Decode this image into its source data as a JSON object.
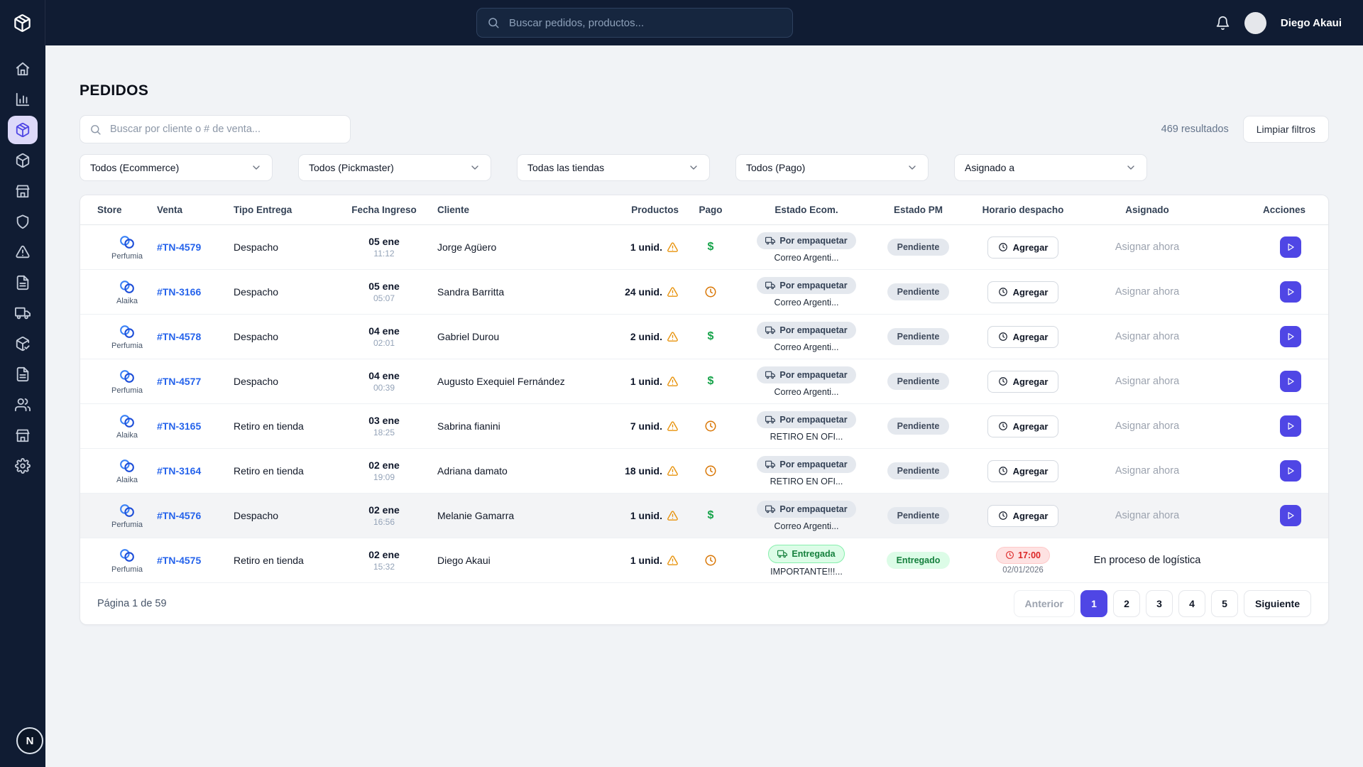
{
  "colors": {
    "navy": "#101c33",
    "accent": "#4f46e5",
    "link": "#2563eb",
    "paid-green": "#16a34a",
    "success-green": "#15803d",
    "warning-orange": "#e8930c",
    "pending-clock-orange": "#d97706",
    "danger-red": "#dc2626"
  },
  "topbar": {
    "logo_icon": "package",
    "search_placeholder": "Buscar pedidos, productos...",
    "bell_icon": "bell",
    "user_name": "Diego Akaui"
  },
  "sidebar": {
    "items": [
      {
        "id": "home",
        "icon": "home",
        "active": false
      },
      {
        "id": "analytics",
        "icon": "chart",
        "active": false
      },
      {
        "id": "orders",
        "icon": "package",
        "active": true
      },
      {
        "id": "products",
        "icon": "cube",
        "active": false
      },
      {
        "id": "store",
        "icon": "store",
        "active": false
      },
      {
        "id": "security",
        "icon": "shield",
        "active": false
      },
      {
        "id": "alerts",
        "icon": "alert-triangle",
        "active": false
      },
      {
        "id": "documents",
        "icon": "file",
        "active": false
      },
      {
        "id": "shipping",
        "icon": "truck",
        "active": false
      },
      {
        "id": "picking",
        "icon": "package-check",
        "active": false
      },
      {
        "id": "reports",
        "icon": "file",
        "active": false
      },
      {
        "id": "users",
        "icon": "users",
        "active": false
      },
      {
        "id": "stores",
        "icon": "store",
        "active": false
      },
      {
        "id": "settings",
        "icon": "gear",
        "active": false
      }
    ],
    "help_label": "N"
  },
  "page": {
    "title": "PEDIDOS",
    "search_placeholder": "Buscar por cliente o # de venta...",
    "results": "469 resultados",
    "clear_filters": "Limpiar filtros"
  },
  "filters": [
    {
      "id": "ecommerce",
      "label": "Todos (Ecommerce)"
    },
    {
      "id": "pickmaster",
      "label": "Todos (Pickmaster)"
    },
    {
      "id": "tienda",
      "label": "Todas las tiendas"
    },
    {
      "id": "pago",
      "label": "Todos (Pago)"
    },
    {
      "id": "asignado",
      "label": "Asignado a"
    }
  ],
  "table": {
    "columns": [
      "Store",
      "Venta",
      "Tipo Entrega",
      "Fecha Ingreso",
      "Cliente",
      "Productos",
      "Pago",
      "Estado Ecom.",
      "Estado PM",
      "Horario despacho",
      "Asignado",
      "Acciones"
    ],
    "rows": [
      {
        "store": "Perfumia",
        "venta": "#TN-4579",
        "tipo": "Despacho",
        "fecha": "05 ene",
        "hora": "11:12",
        "cliente": "Jorge Agüero",
        "productos": "1 unid.",
        "pago": "paid",
        "ecom": {
          "label": "Por empaquetar",
          "sub": "Correo Argenti...",
          "variant": "gray"
        },
        "pm": {
          "label": "Pendiente",
          "variant": "gray"
        },
        "horario": {
          "type": "button",
          "label": "Agregar"
        },
        "asignado": {
          "label": "Asignar ahora",
          "muted": true
        },
        "action": true,
        "highlighted": false
      },
      {
        "store": "Alaika",
        "venta": "#TN-3166",
        "tipo": "Despacho",
        "fecha": "05 ene",
        "hora": "05:07",
        "cliente": "Sandra Barritta",
        "productos": "24 unid.",
        "pago": "pending",
        "ecom": {
          "label": "Por empaquetar",
          "sub": "Correo Argenti...",
          "variant": "gray"
        },
        "pm": {
          "label": "Pendiente",
          "variant": "gray"
        },
        "horario": {
          "type": "button",
          "label": "Agregar"
        },
        "asignado": {
          "label": "Asignar ahora",
          "muted": true
        },
        "action": true,
        "highlighted": false
      },
      {
        "store": "Perfumia",
        "venta": "#TN-4578",
        "tipo": "Despacho",
        "fecha": "04 ene",
        "hora": "02:01",
        "cliente": "Gabriel Durou",
        "productos": "2 unid.",
        "pago": "paid",
        "ecom": {
          "label": "Por empaquetar",
          "sub": "Correo Argenti...",
          "variant": "gray"
        },
        "pm": {
          "label": "Pendiente",
          "variant": "gray"
        },
        "horario": {
          "type": "button",
          "label": "Agregar"
        },
        "asignado": {
          "label": "Asignar ahora",
          "muted": true
        },
        "action": true,
        "highlighted": false
      },
      {
        "store": "Perfumia",
        "venta": "#TN-4577",
        "tipo": "Despacho",
        "fecha": "04 ene",
        "hora": "00:39",
        "cliente": "Augusto Exequiel Fernández",
        "productos": "1 unid.",
        "pago": "paid",
        "ecom": {
          "label": "Por empaquetar",
          "sub": "Correo Argenti...",
          "variant": "gray"
        },
        "pm": {
          "label": "Pendiente",
          "variant": "gray"
        },
        "horario": {
          "type": "button",
          "label": "Agregar"
        },
        "asignado": {
          "label": "Asignar ahora",
          "muted": true
        },
        "action": true,
        "highlighted": false
      },
      {
        "store": "Alaika",
        "venta": "#TN-3165",
        "tipo": "Retiro en tienda",
        "fecha": "03 ene",
        "hora": "18:25",
        "cliente": "Sabrina fianini",
        "productos": "7 unid.",
        "pago": "pending",
        "ecom": {
          "label": "Por empaquetar",
          "sub": "RETIRO EN OFI...",
          "variant": "gray"
        },
        "pm": {
          "label": "Pendiente",
          "variant": "gray"
        },
        "horario": {
          "type": "button",
          "label": "Agregar"
        },
        "asignado": {
          "label": "Asignar ahora",
          "muted": true
        },
        "action": true,
        "highlighted": false
      },
      {
        "store": "Alaika",
        "venta": "#TN-3164",
        "tipo": "Retiro en tienda",
        "fecha": "02 ene",
        "hora": "19:09",
        "cliente": "Adriana damato",
        "productos": "18 unid.",
        "pago": "pending",
        "ecom": {
          "label": "Por empaquetar",
          "sub": "RETIRO EN OFI...",
          "variant": "gray"
        },
        "pm": {
          "label": "Pendiente",
          "variant": "gray"
        },
        "horario": {
          "type": "button",
          "label": "Agregar"
        },
        "asignado": {
          "label": "Asignar ahora",
          "muted": true
        },
        "action": true,
        "highlighted": false
      },
      {
        "store": "Perfumia",
        "venta": "#TN-4576",
        "tipo": "Despacho",
        "fecha": "02 ene",
        "hora": "16:56",
        "cliente": "Melanie Gamarra",
        "productos": "1 unid.",
        "pago": "paid",
        "ecom": {
          "label": "Por empaquetar",
          "sub": "Correo Argenti...",
          "variant": "gray"
        },
        "pm": {
          "label": "Pendiente",
          "variant": "gray"
        },
        "horario": {
          "type": "button",
          "label": "Agregar"
        },
        "asignado": {
          "label": "Asignar ahora",
          "muted": true
        },
        "action": true,
        "highlighted": true
      },
      {
        "store": "Perfumia",
        "venta": "#TN-4575",
        "tipo": "Retiro en tienda",
        "fecha": "02 ene",
        "hora": "15:32",
        "cliente": "Diego Akaui",
        "productos": "1 unid.",
        "pago": "pending",
        "ecom": {
          "label": "Entregada",
          "sub": "IMPORTANTE!!!...",
          "variant": "green"
        },
        "pm": {
          "label": "Entregado",
          "variant": "green"
        },
        "horario": {
          "type": "time",
          "label": "17:00",
          "sub": "02/01/2026"
        },
        "asignado": {
          "label": "En proceso de logística",
          "muted": false
        },
        "action": false,
        "highlighted": false
      }
    ]
  },
  "pagination": {
    "label": "Página 1 de 59",
    "prev": "Anterior",
    "pages": [
      "1",
      "2",
      "3",
      "4",
      "5"
    ],
    "active": "1",
    "next": "Siguiente"
  }
}
